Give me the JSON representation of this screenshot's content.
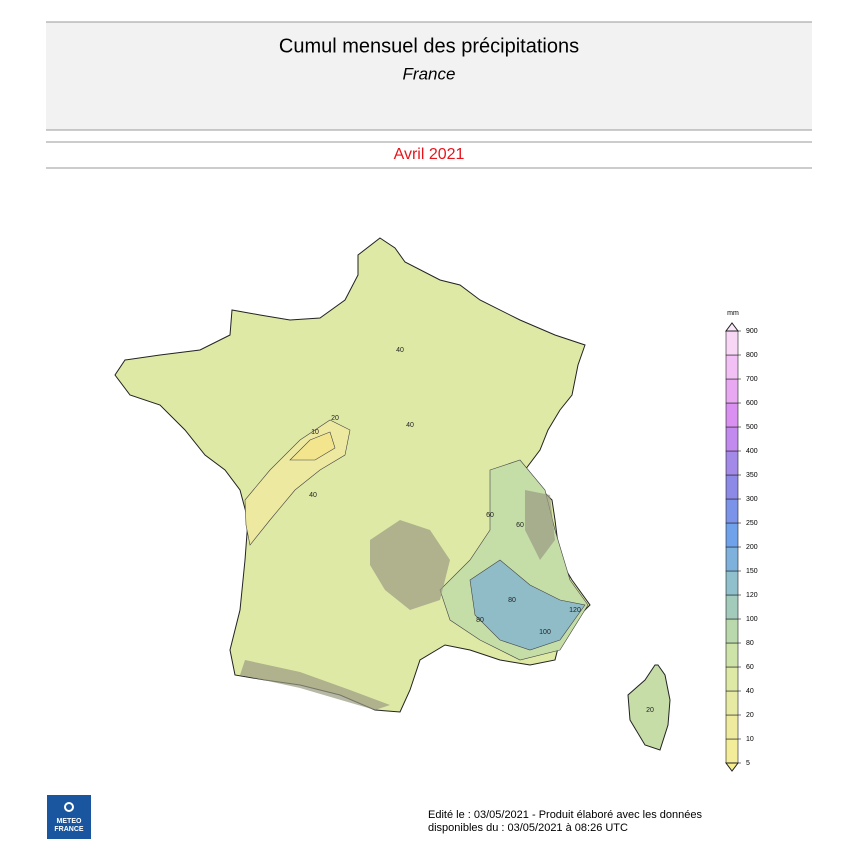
{
  "header": {
    "title": "Cumul mensuel des précipitations",
    "subtitle": "France",
    "period": "Avril 2021"
  },
  "legend": {
    "unit": "mm",
    "levels": [
      5,
      10,
      20,
      40,
      60,
      80,
      100,
      120,
      150,
      200,
      250,
      300,
      350,
      400,
      500,
      600,
      700,
      800,
      900
    ],
    "colors": [
      "#f6ee8e",
      "#f3ec98",
      "#efeb9e",
      "#e7eaa2",
      "#dde9a5",
      "#cde3a8",
      "#b9d9ad",
      "#a2cbbb",
      "#8fc0cc",
      "#7eb2dd",
      "#6fa2ea",
      "#7b93e8",
      "#8c8ae6",
      "#a38ae8",
      "#c28aee",
      "#da90f0",
      "#e9a8f2",
      "#f2c0f4",
      "#f7d6f6",
      "#fbe8fa"
    ]
  },
  "map": {
    "contour_labels": [
      "40",
      "10",
      "20",
      "40",
      "40",
      "60",
      "80",
      "100",
      "120",
      "80",
      "60",
      "20"
    ]
  },
  "logo": {
    "line1": "METEO",
    "line2": "FRANCE"
  },
  "footer": {
    "line1": "Edité le : 03/05/2021 - Produit élaboré avec les données",
    "line2": "disponibles du : 03/05/2021 à 08:26 UTC"
  }
}
